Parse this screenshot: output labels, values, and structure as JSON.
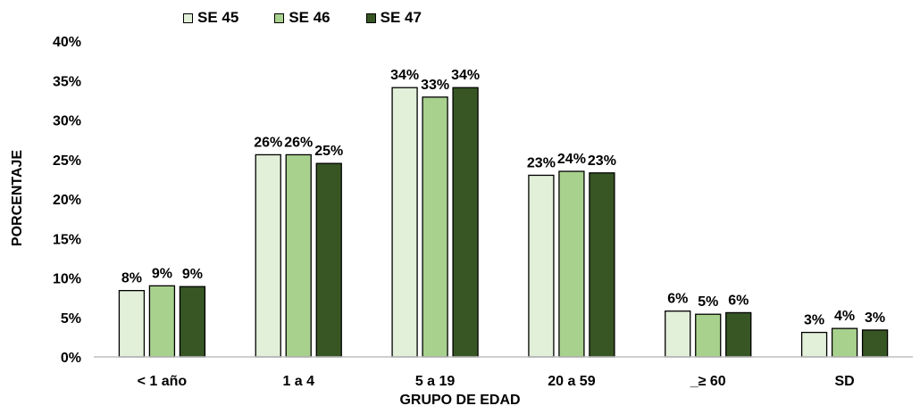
{
  "chart_data": {
    "type": "bar",
    "categories": [
      "< 1 año",
      "1 a 4",
      "5 a 19",
      "20 a 59",
      "_≥ 60",
      "SD"
    ],
    "series": [
      {
        "name": "SE 45",
        "color": "#e2efd9",
        "values": [
          8.4,
          25.6,
          34.1,
          23.0,
          5.8,
          3.1
        ],
        "labels": [
          "8%",
          "26%",
          "34%",
          "23%",
          "6%",
          "3%"
        ]
      },
      {
        "name": "SE 46",
        "color": "#a9d18e",
        "values": [
          9.0,
          25.6,
          32.9,
          23.5,
          5.4,
          3.6
        ],
        "labels": [
          "9%",
          "26%",
          "33%",
          "24%",
          "5%",
          "4%"
        ]
      },
      {
        "name": "SE 47",
        "color": "#375623",
        "values": [
          8.9,
          24.5,
          34.1,
          23.3,
          5.6,
          3.4
        ],
        "labels": [
          "9%",
          "25%",
          "34%",
          "23%",
          "6%",
          "3%"
        ]
      }
    ],
    "ylim": [
      0,
      40
    ],
    "yticks": [
      "0%",
      "5%",
      "10%",
      "15%",
      "20%",
      "25%",
      "30%",
      "35%",
      "40%"
    ],
    "ylabel": "PORCENTAJE",
    "xlabel": "GRUPO DE EDAD",
    "legend": "top-left",
    "grid": false
  }
}
